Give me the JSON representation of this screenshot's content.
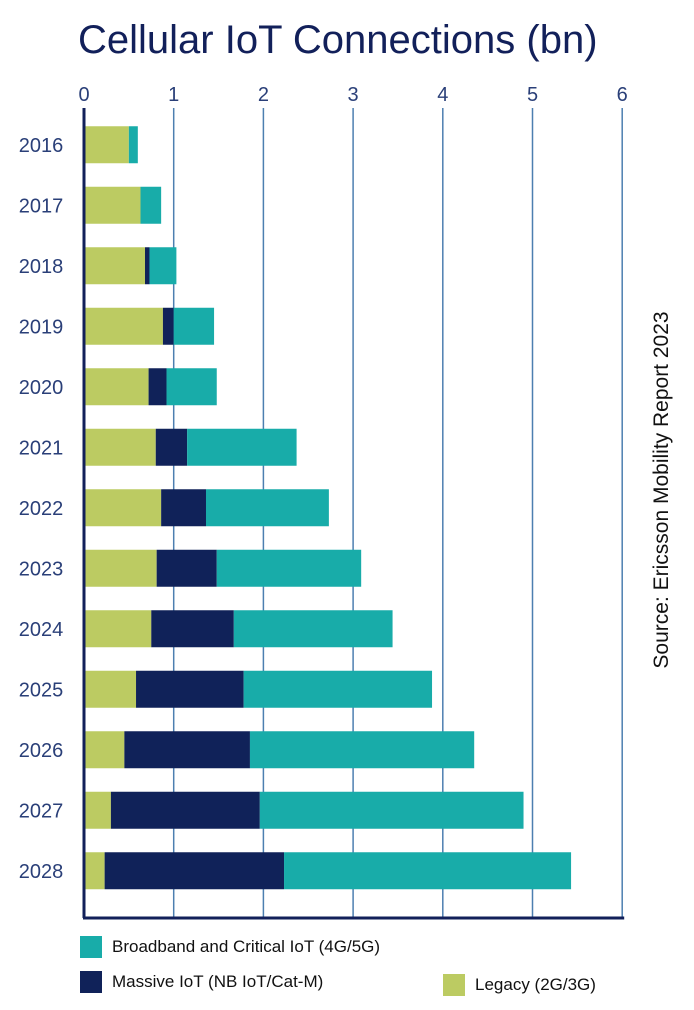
{
  "chart_data": {
    "type": "bar",
    "orientation": "horizontal",
    "stacked": true,
    "title": "Cellular IoT Connections (bn)",
    "source": "Source: Ericsson Mobility Report 2023",
    "categories": [
      "2016",
      "2017",
      "2018",
      "2019",
      "2020",
      "2021",
      "2022",
      "2023",
      "2024",
      "2025",
      "2026",
      "2027",
      "2028"
    ],
    "x_ticks": [
      "0",
      "1",
      "2",
      "3",
      "4",
      "5",
      "6"
    ],
    "xlim": [
      0,
      6
    ],
    "grid": "vertical",
    "axis_position": "top",
    "series": [
      {
        "name": "Legacy (2G/3G)",
        "color": "#bccb62",
        "values": [
          0.5,
          0.63,
          0.68,
          0.88,
          0.72,
          0.8,
          0.86,
          0.81,
          0.75,
          0.58,
          0.45,
          0.3,
          0.23
        ]
      },
      {
        "name": "Massive IoT (NB IoT/Cat-M)",
        "color": "#102259",
        "values": [
          0.0,
          0.0,
          0.05,
          0.12,
          0.2,
          0.35,
          0.5,
          0.67,
          0.92,
          1.2,
          1.4,
          1.66,
          2.0
        ]
      },
      {
        "name": "Broadband and Critical IoT (4G/5G)",
        "color": "#18aca9",
        "values": [
          0.1,
          0.23,
          0.3,
          0.45,
          0.56,
          1.22,
          1.37,
          1.61,
          1.77,
          2.1,
          2.5,
          2.94,
          3.2
        ]
      }
    ],
    "legend": [
      {
        "label": "Broadband and Critical IoT (4G/5G)",
        "color": "#18aca9"
      },
      {
        "label": "Massive IoT (NB IoT/Cat-M)",
        "color": "#102259"
      },
      {
        "label": "Legacy (2G/3G)",
        "color": "#bccb62"
      }
    ],
    "legend_placement": "bottom",
    "colors": {
      "axis": "#12205a",
      "grid": "#4d7fb0",
      "text": "#2a3f78"
    }
  }
}
